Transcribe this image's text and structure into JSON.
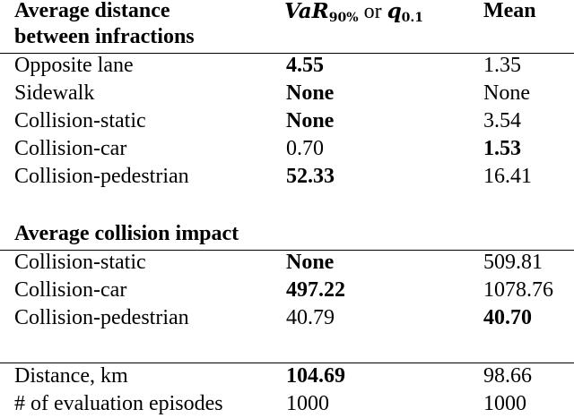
{
  "header": {
    "col1_line1": "Average distance",
    "col1_line2": "between infractions",
    "col2_var": "VaR",
    "col2_var_sub": "90%",
    "col2_or": "or",
    "col2_q": "q",
    "col2_q_sub": "0.1",
    "col3": "Mean"
  },
  "infractions": [
    {
      "label": "Opposite lane",
      "risk": "4.55",
      "mean": "1.35"
    },
    {
      "label": "Sidewalk",
      "risk": "None",
      "mean": "None"
    },
    {
      "label": "Collision-static",
      "risk": "None",
      "mean": "3.54"
    },
    {
      "label": "Collision-car",
      "risk": "0.70",
      "mean": "1.53"
    },
    {
      "label": "Collision-pedestrian",
      "risk": "52.33",
      "mean": "16.41"
    }
  ],
  "impact_section": {
    "title": "Average collision impact",
    "rows": [
      {
        "label": "Collision-static",
        "risk": "None",
        "mean": "509.81"
      },
      {
        "label": "Collision-car",
        "risk": "497.22",
        "mean": "1078.76"
      },
      {
        "label": "Collision-pedestrian",
        "risk": "40.79",
        "mean": "40.70"
      }
    ]
  },
  "summary": [
    {
      "label": "Distance, km",
      "risk": "104.69",
      "mean": "98.66"
    },
    {
      "label": "# of evaluation episodes",
      "risk": "1000",
      "mean": "1000"
    }
  ]
}
